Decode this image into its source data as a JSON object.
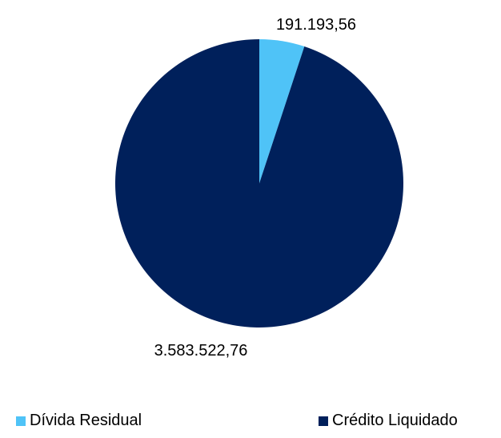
{
  "chart_data": {
    "type": "pie",
    "categories": [
      "Dívida Residual",
      "Crédito Liquidado"
    ],
    "values": [
      191193.56,
      3583522.76
    ],
    "data_labels": [
      "191.193,56",
      "3.583.522,76"
    ],
    "colors": [
      "#4fc3f7",
      "#00205b"
    ],
    "legend": {
      "position": "bottom",
      "items": [
        "Dívida Residual",
        "Crédito Liquidado"
      ]
    },
    "start_angle_deg": 0,
    "direction": "clockwise"
  }
}
